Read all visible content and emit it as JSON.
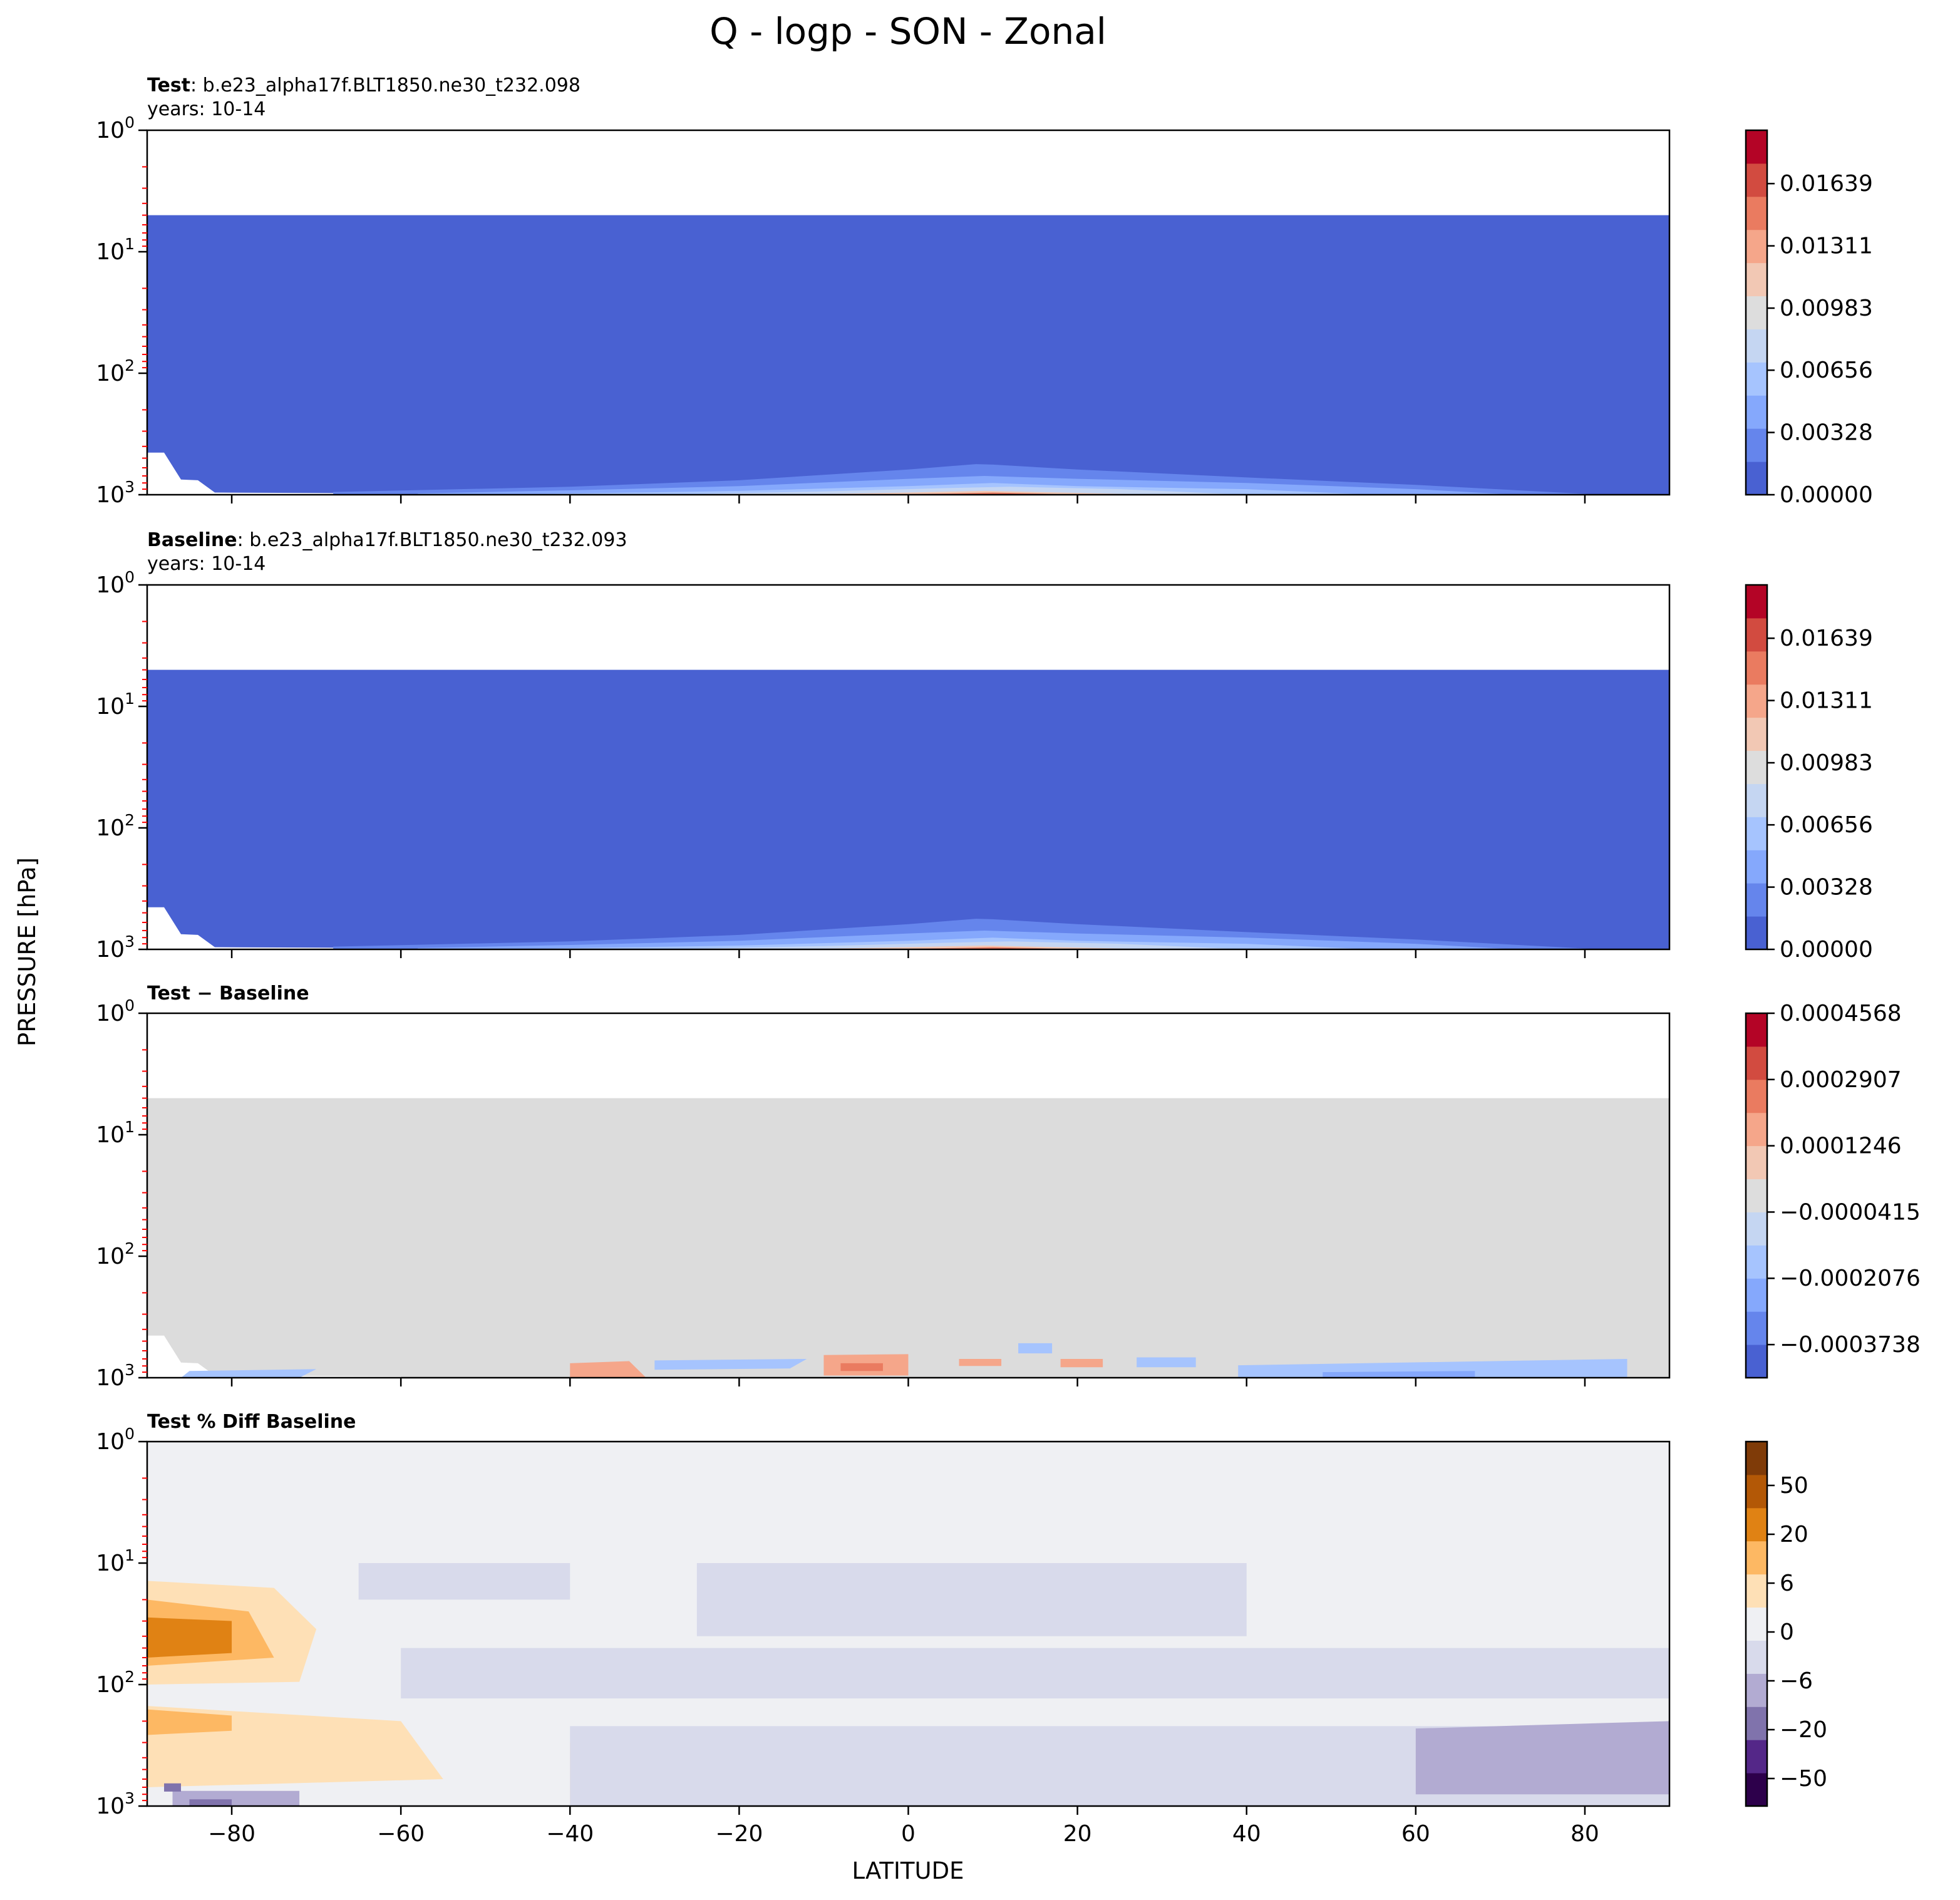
{
  "figure": {
    "title": "Q - logp - SON - Zonal",
    "ylabel": "PRESSURE [hPa]",
    "xlabel": "LATITUDE"
  },
  "colors": {
    "coolwarm": [
      "#4961d2",
      "#6585ec",
      "#85a8fc",
      "#a6c4fe",
      "#c5d6f2",
      "#dddddd",
      "#f2c8b4",
      "#f5a68a",
      "#ea7b60",
      "#d24b40",
      "#b40426"
    ],
    "diff_gray": "#dcdcdc",
    "pct_neutral": "#eff0f3",
    "puor": [
      "#2d004b",
      "#542788",
      "#8073ac",
      "#b2abd2",
      "#d8daeb",
      "#eff0f3",
      "#fee0b6",
      "#fdb863",
      "#e08214",
      "#b35806",
      "#7f3b08"
    ],
    "blank": "#ffffff",
    "minor_tick": "#ff0000"
  },
  "chart_data": [
    {
      "type": "heatmap",
      "panel": "test",
      "header_bold": "Test",
      "header_rest": ": b.e23_alpha17f.BLT1850.ne30_t232.098",
      "years": "years: 10-14",
      "xlim": [
        -90,
        90
      ],
      "ylim": [
        1000,
        1
      ],
      "yscale": "log",
      "yticks": [
        "10",
        "10",
        "10",
        "10"
      ],
      "yticks_exp": [
        "0",
        "1",
        "2",
        "3"
      ],
      "xticks": [
        "−80",
        "−60",
        "−40",
        "−20",
        "0",
        "20",
        "40",
        "60",
        "80"
      ],
      "data_top_hPa": 5,
      "colorbar_ticks": [
        "0.00000",
        "0.00328",
        "0.00656",
        "0.00983",
        "0.01311",
        "0.01639"
      ],
      "colorbar_range": [
        0,
        0.0192
      ],
      "surface_bulge_levels": [
        {
          "level": 1,
          "lat": [
            -68,
            -40,
            -20,
            0,
            8,
            10,
            20,
            40,
            60,
            82
          ],
          "p": [
            950,
            860,
            760,
            620,
            560,
            565,
            620,
            720,
            830,
            1000
          ]
        },
        {
          "level": 2,
          "lat": [
            -58,
            -40,
            -20,
            0,
            9,
            20,
            40,
            60,
            72
          ],
          "p": [
            975,
            920,
            850,
            740,
            700,
            740,
            800,
            900,
            1000
          ]
        },
        {
          "level": 3,
          "lat": [
            -45,
            -20,
            0,
            10,
            20,
            40,
            55
          ],
          "p": [
            990,
            930,
            850,
            800,
            850,
            900,
            1000
          ]
        },
        {
          "level": 4,
          "lat": [
            -30,
            -10,
            5,
            12,
            25,
            40
          ],
          "p": [
            1000,
            940,
            880,
            860,
            900,
            1000
          ]
        },
        {
          "level": 6,
          "lat": [
            -15,
            0,
            9,
            18,
            30
          ],
          "p": [
            1000,
            960,
            930,
            960,
            1000
          ]
        },
        {
          "level": 8,
          "lat": [
            -5,
            5,
            10,
            15,
            20
          ],
          "p": [
            1000,
            975,
            960,
            975,
            1000
          ]
        },
        {
          "level": 10,
          "lat": [
            2,
            8,
            12,
            16
          ],
          "p": [
            1000,
            988,
            985,
            1000
          ]
        }
      ]
    },
    {
      "type": "heatmap",
      "panel": "baseline",
      "header_bold": "Baseline",
      "header_rest": ": b.e23_alpha17f.BLT1850.ne30_t232.093",
      "years": "years: 10-14",
      "xlim": [
        -90,
        90
      ],
      "ylim": [
        1000,
        1
      ],
      "yscale": "log",
      "yticks": [
        "10",
        "10",
        "10",
        "10"
      ],
      "yticks_exp": [
        "0",
        "1",
        "2",
        "3"
      ],
      "data_top_hPa": 5,
      "colorbar_ticks": [
        "0.00000",
        "0.00328",
        "0.00656",
        "0.00983",
        "0.01311",
        "0.01639"
      ],
      "colorbar_range": [
        0,
        0.0192
      ],
      "surface_bulge_levels": [
        {
          "level": 1,
          "lat": [
            -68,
            -40,
            -20,
            0,
            8,
            10,
            20,
            40,
            60,
            82
          ],
          "p": [
            950,
            860,
            760,
            620,
            560,
            565,
            620,
            720,
            830,
            1000
          ]
        },
        {
          "level": 2,
          "lat": [
            -58,
            -40,
            -20,
            0,
            9,
            20,
            40,
            60,
            72
          ],
          "p": [
            975,
            920,
            850,
            740,
            700,
            740,
            800,
            900,
            1000
          ]
        },
        {
          "level": 3,
          "lat": [
            -45,
            -20,
            0,
            10,
            20,
            40,
            55
          ],
          "p": [
            990,
            930,
            850,
            800,
            850,
            900,
            1000
          ]
        },
        {
          "level": 4,
          "lat": [
            -30,
            -10,
            5,
            12,
            25,
            40
          ],
          "p": [
            1000,
            940,
            880,
            860,
            900,
            1000
          ]
        },
        {
          "level": 6,
          "lat": [
            -15,
            0,
            9,
            18,
            30
          ],
          "p": [
            1000,
            960,
            930,
            960,
            1000
          ]
        },
        {
          "level": 8,
          "lat": [
            -5,
            5,
            10,
            15,
            20
          ],
          "p": [
            1000,
            975,
            960,
            975,
            1000
          ]
        },
        {
          "level": 10,
          "lat": [
            2,
            8,
            12,
            16
          ],
          "p": [
            1000,
            988,
            985,
            1000
          ]
        }
      ]
    },
    {
      "type": "heatmap",
      "panel": "difference",
      "header_bold": "Test − Baseline",
      "xlim": [
        -90,
        90
      ],
      "ylim": [
        1000,
        1
      ],
      "yscale": "log",
      "yticks": [
        "10",
        "10",
        "10",
        "10"
      ],
      "yticks_exp": [
        "0",
        "1",
        "2",
        "3"
      ],
      "data_top_hPa": 5,
      "colorbar_ticks": [
        "−0.0003738",
        "−0.0002076",
        "−0.0000415",
        "0.0001246",
        "0.0002907",
        "0.0004568"
      ],
      "colorbar_range": [
        -0.0004568,
        0.0004568
      ],
      "blobs": [
        {
          "lat": [
            -85,
            -70,
            -72,
            -86
          ],
          "p": [
            880,
            850,
            1000,
            1000
          ],
          "level": 3
        },
        {
          "lat": [
            -40,
            -33,
            -31,
            -40
          ],
          "p": [
            760,
            730,
            1000,
            1000
          ],
          "level": 7
        },
        {
          "lat": [
            -30,
            -12,
            -14,
            -30
          ],
          "p": [
            720,
            700,
            840,
            860
          ],
          "level": 3
        },
        {
          "lat": [
            -10,
            0,
            0,
            -10
          ],
          "p": [
            650,
            640,
            960,
            960
          ],
          "level": 7
        },
        {
          "lat": [
            -8,
            -3,
            -3,
            -8
          ],
          "p": [
            760,
            760,
            880,
            880
          ],
          "level": 8
        },
        {
          "lat": [
            6,
            11,
            11,
            6
          ],
          "p": [
            700,
            700,
            800,
            800
          ],
          "level": 7
        },
        {
          "lat": [
            13,
            17,
            17,
            13
          ],
          "p": [
            520,
            520,
            630,
            630
          ],
          "level": 3
        },
        {
          "lat": [
            18,
            23,
            23,
            18
          ],
          "p": [
            700,
            700,
            820,
            820
          ],
          "level": 7
        },
        {
          "lat": [
            27,
            34,
            34,
            27
          ],
          "p": [
            680,
            680,
            820,
            820
          ],
          "level": 3
        },
        {
          "lat": [
            39,
            85,
            85,
            39
          ],
          "p": [
            790,
            700,
            1000,
            1000
          ],
          "level": 3
        },
        {
          "lat": [
            49,
            67,
            67,
            49
          ],
          "p": [
            900,
            880,
            1000,
            1000
          ],
          "level": 2
        }
      ]
    },
    {
      "type": "heatmap",
      "panel": "percent_difference",
      "header_bold": "Test % Diff Baseline",
      "xlim": [
        -90,
        90
      ],
      "ylim": [
        1000,
        1
      ],
      "yscale": "log",
      "yticks": [
        "10",
        "10",
        "10",
        "10"
      ],
      "yticks_exp": [
        "0",
        "1",
        "2",
        "3"
      ],
      "colorbar_ticks": [
        "−50",
        "−20",
        "−6",
        "0",
        "6",
        "20",
        "50"
      ],
      "colorbar_levels": [
        -100,
        -50,
        -20,
        -6,
        0,
        6,
        20,
        50,
        100
      ],
      "blobs": [
        {
          "lat": [
            -90,
            -75,
            -70,
            -72,
            -90
          ],
          "p": [
            14,
            16,
            35,
            95,
            100
          ],
          "level": 6
        },
        {
          "lat": [
            -90,
            -78,
            -75,
            -90
          ],
          "p": [
            20,
            25,
            60,
            70
          ],
          "level": 7
        },
        {
          "lat": [
            -90,
            -80,
            -80,
            -90
          ],
          "p": [
            28,
            30,
            55,
            60
          ],
          "level": 8
        },
        {
          "lat": [
            -90,
            -60,
            -55,
            -90
          ],
          "p": [
            150,
            200,
            600,
            700
          ],
          "level": 6
        },
        {
          "lat": [
            -90,
            -80,
            -80,
            -90
          ],
          "p": [
            160,
            180,
            240,
            260
          ],
          "level": 7
        },
        {
          "lat": [
            -40,
            -30,
            -32,
            -40
          ],
          "p": [
            300,
            350,
            900,
            950
          ],
          "level": 6
        },
        {
          "lat": [
            -10,
            0,
            0,
            -10
          ],
          "p": [
            700,
            700,
            1000,
            1000
          ],
          "level": 6
        },
        {
          "lat": [
            -65,
            -40,
            -40,
            -65
          ],
          "p": [
            10,
            10,
            20,
            20
          ],
          "level": 4
        },
        {
          "lat": [
            -25,
            40,
            40,
            -25
          ],
          "p": [
            10,
            10,
            40,
            40
          ],
          "level": 4
        },
        {
          "lat": [
            -60,
            90,
            90,
            -60
          ],
          "p": [
            50,
            50,
            130,
            130
          ],
          "level": 4
        },
        {
          "lat": [
            -40,
            90,
            90,
            -40
          ],
          "p": [
            220,
            220,
            1000,
            1000
          ],
          "level": 4
        },
        {
          "lat": [
            60,
            90,
            90,
            60
          ],
          "p": [
            230,
            200,
            800,
            800
          ],
          "level": 3
        },
        {
          "lat": [
            -87,
            -72,
            -72,
            -87
          ],
          "p": [
            750,
            750,
            1000,
            1000
          ],
          "level": 3
        },
        {
          "lat": [
            -85,
            -80,
            -80,
            -85
          ],
          "p": [
            880,
            880,
            1000,
            1000
          ],
          "level": 2
        },
        {
          "lat": [
            -88,
            -86,
            -86,
            -88
          ],
          "p": [
            650,
            650,
            760,
            760
          ],
          "level": 2
        }
      ]
    }
  ]
}
